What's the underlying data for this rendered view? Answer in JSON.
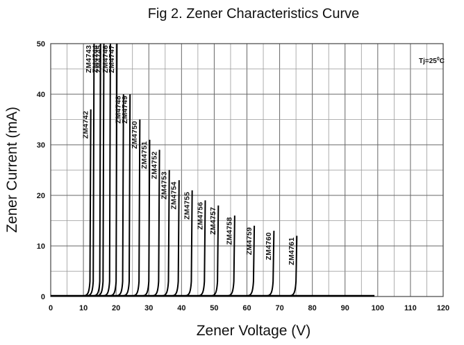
{
  "chart_data": {
    "type": "line",
    "title": "Fig 2. Zener Characteristics Curve",
    "xlabel": "Zener Voltage (V)",
    "ylabel": "Zener Current (mA)",
    "xlim": [
      0,
      120
    ],
    "ylim": [
      0,
      50
    ],
    "xticks": [
      0,
      10,
      20,
      30,
      40,
      50,
      60,
      70,
      80,
      90,
      100,
      110,
      120
    ],
    "yticks": [
      0,
      10,
      20,
      30,
      40,
      50
    ],
    "grid": true,
    "annotation": {
      "text": "Tj=25",
      "sup": "0",
      "unit": "C"
    },
    "series": [
      {
        "name": "ZM4742",
        "vz": 12.0,
        "imax": 37
      },
      {
        "name": "ZM4743",
        "vz": 13.0,
        "imax": 50
      },
      {
        "name": "ZM4744",
        "vz": 15.0,
        "imax": 50
      },
      {
        "name": "ZM4745",
        "vz": 16.0,
        "imax": 50
      },
      {
        "name": "ZM4746",
        "vz": 18.0,
        "imax": 50
      },
      {
        "name": "ZM4747",
        "vz": 20.0,
        "imax": 50
      },
      {
        "name": "ZM4748",
        "vz": 22.0,
        "imax": 40
      },
      {
        "name": "ZM4749",
        "vz": 24.0,
        "imax": 40
      },
      {
        "name": "ZM4750",
        "vz": 27.0,
        "imax": 35
      },
      {
        "name": "ZM4751",
        "vz": 30.0,
        "imax": 31
      },
      {
        "name": "ZM4752",
        "vz": 33.0,
        "imax": 29
      },
      {
        "name": "ZM4753",
        "vz": 36.0,
        "imax": 25
      },
      {
        "name": "ZM4754",
        "vz": 39.0,
        "imax": 23
      },
      {
        "name": "ZM4755",
        "vz": 43.0,
        "imax": 21
      },
      {
        "name": "ZM4756",
        "vz": 47.0,
        "imax": 19
      },
      {
        "name": "ZM4757",
        "vz": 51.0,
        "imax": 18
      },
      {
        "name": "ZM4758",
        "vz": 56.0,
        "imax": 16
      },
      {
        "name": "ZM4759",
        "vz": 62.0,
        "imax": 14
      },
      {
        "name": "ZM4760",
        "vz": 68.0,
        "imax": 13
      },
      {
        "name": "ZM4761",
        "vz": 75.0,
        "imax": 12
      }
    ]
  }
}
